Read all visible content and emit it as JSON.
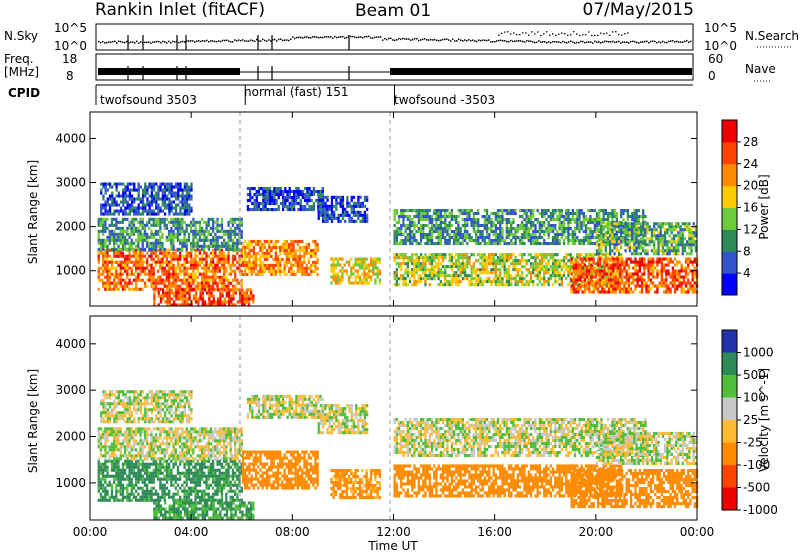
{
  "header": {
    "station": "Rankin Inlet (fitACF)",
    "beam": "Beam 01",
    "date": "07/May/2015"
  },
  "nsky_panel": {
    "left_label": "N.Sky",
    "left_ticks": [
      "10^5",
      "10^0"
    ],
    "right_label": "N.Search",
    "right_ticks": [
      "10^5",
      "10^0"
    ]
  },
  "freq_panel": {
    "left_label_line1": "Freq.",
    "left_label_line2": "[MHz]",
    "left_ticks": [
      "18",
      "8"
    ],
    "right_label": "Nave",
    "right_ticks": [
      "60",
      "0"
    ]
  },
  "cpid_panel": {
    "label": "CPID",
    "segments": [
      {
        "name": "twofsound 3503",
        "start_hour": 0,
        "end_hour": 6
      },
      {
        "name": "normal (fast) 151",
        "start_hour": 6,
        "end_hour": 12
      },
      {
        "name": "twofsound -3503",
        "start_hour": 12,
        "end_hour": 24
      }
    ]
  },
  "chart_data": [
    {
      "type": "heatmap",
      "name": "power",
      "xlabel": "",
      "ylabel": "Slant Range [km]",
      "xlim": [
        0,
        24
      ],
      "ylim": [
        200,
        4600
      ],
      "y_ticks": [
        1000,
        2000,
        3000,
        4000
      ],
      "colorbar": {
        "label": "Power [dB]",
        "ticks": [
          "4",
          "8",
          "12",
          "16",
          "20",
          "24",
          "28"
        ],
        "colors": [
          "#0000ff",
          "#3355cc",
          "#2e8b57",
          "#6ccb3a",
          "#ffcc00",
          "#ff8c00",
          "#ff4400",
          "#ee0000"
        ]
      },
      "echo_regions": [
        {
          "t0": 0.3,
          "t1": 6.0,
          "r0": 600,
          "r1": 1500,
          "value": 24
        },
        {
          "t0": 0.3,
          "t1": 6.0,
          "r0": 1500,
          "r1": 2200,
          "value": 10
        },
        {
          "t0": 0.4,
          "t1": 4.0,
          "r0": 2300,
          "r1": 3000,
          "value": 6
        },
        {
          "t0": 2.5,
          "t1": 6.5,
          "r0": 250,
          "r1": 600,
          "value": 26
        },
        {
          "t0": 6.0,
          "t1": 9.0,
          "r0": 900,
          "r1": 1700,
          "value": 22
        },
        {
          "t0": 6.2,
          "t1": 9.2,
          "r0": 2400,
          "r1": 2900,
          "value": 6
        },
        {
          "t0": 9.5,
          "t1": 11.5,
          "r0": 700,
          "r1": 1300,
          "value": 18
        },
        {
          "t0": 9.0,
          "t1": 11.0,
          "r0": 2100,
          "r1": 2700,
          "value": 5
        },
        {
          "t0": 12.0,
          "t1": 21.0,
          "r0": 700,
          "r1": 1400,
          "value": 16
        },
        {
          "t0": 12.0,
          "t1": 22.0,
          "r0": 1600,
          "r1": 2400,
          "value": 10
        },
        {
          "t0": 19.0,
          "t1": 24.0,
          "r0": 500,
          "r1": 1300,
          "value": 25
        },
        {
          "t0": 20.0,
          "t1": 24.0,
          "r0": 1400,
          "r1": 2100,
          "value": 12
        }
      ]
    },
    {
      "type": "heatmap",
      "name": "velocity",
      "xlabel": "Time UT",
      "ylabel": "Slant Range [km]",
      "xlim": [
        0,
        24
      ],
      "ylim": [
        200,
        4600
      ],
      "x_ticks": [
        "00:00",
        "04:00",
        "08:00",
        "12:00",
        "16:00",
        "20:00",
        "00:00"
      ],
      "y_ticks": [
        1000,
        2000,
        3000,
        4000
      ],
      "colorbar": {
        "label": "Velocity [m s^-1]",
        "ticks": [
          "1000",
          "500",
          "100",
          "25",
          "-25",
          "-100",
          "-500",
          "-1000"
        ],
        "colors": [
          "#2233aa",
          "#2e8b57",
          "#4fbf3a",
          "#c8c8c8",
          "#ffbb33",
          "#ff8c00",
          "#ff4400",
          "#ee0000"
        ]
      },
      "echo_regions": [
        {
          "t0": 0.3,
          "t1": 6.0,
          "r0": 600,
          "r1": 1500,
          "value": 150
        },
        {
          "t0": 0.3,
          "t1": 6.0,
          "r0": 1500,
          "r1": 2200,
          "value": 0
        },
        {
          "t0": 0.4,
          "t1": 4.0,
          "r0": 2300,
          "r1": 3000,
          "value": 0
        },
        {
          "t0": 2.5,
          "t1": 6.5,
          "r0": 250,
          "r1": 600,
          "value": 120
        },
        {
          "t0": 6.0,
          "t1": 9.0,
          "r0": 900,
          "r1": 1700,
          "value": -200
        },
        {
          "t0": 6.2,
          "t1": 9.2,
          "r0": 2400,
          "r1": 2900,
          "value": 0
        },
        {
          "t0": 9.5,
          "t1": 11.5,
          "r0": 700,
          "r1": 1300,
          "value": -150
        },
        {
          "t0": 9.0,
          "t1": 11.0,
          "r0": 2100,
          "r1": 2700,
          "value": 0
        },
        {
          "t0": 12.0,
          "t1": 21.0,
          "r0": 700,
          "r1": 1400,
          "value": -300
        },
        {
          "t0": 12.0,
          "t1": 22.0,
          "r0": 1600,
          "r1": 2400,
          "value": 0
        },
        {
          "t0": 19.0,
          "t1": 24.0,
          "r0": 500,
          "r1": 1300,
          "value": -400
        },
        {
          "t0": 20.0,
          "t1": 24.0,
          "r0": 1400,
          "r1": 2100,
          "value": 0
        }
      ]
    }
  ]
}
